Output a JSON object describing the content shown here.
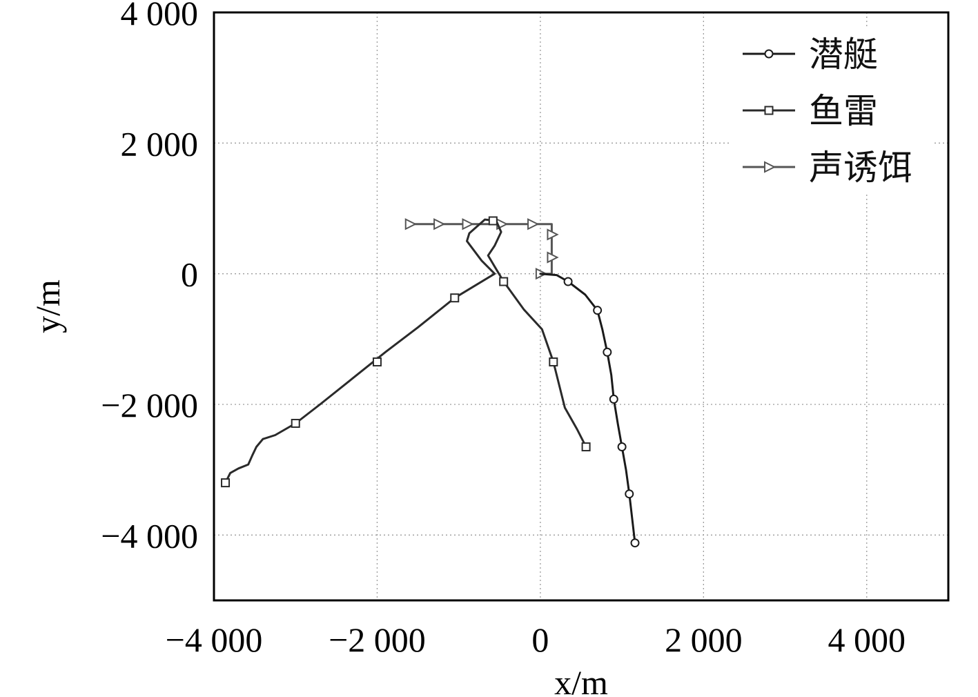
{
  "chart_data": {
    "type": "line",
    "title": "",
    "xlabel": "x/m",
    "ylabel": "y/m",
    "xlim": [
      -4000,
      5000
    ],
    "ylim": [
      -5000,
      4000
    ],
    "x_ticks": [
      -4000,
      -2000,
      0,
      2000,
      4000
    ],
    "y_ticks": [
      -4000,
      -2000,
      0,
      2000,
      4000
    ],
    "x_tick_labels": [
      "−4 000",
      "−2 000",
      "0",
      "2 000",
      "4 000"
    ],
    "y_tick_labels": [
      "−4 000",
      "−2 000",
      "0",
      "2 000",
      "4 000"
    ],
    "grid": true,
    "legend_position": "top-right",
    "series": [
      {
        "name": "潜艇",
        "marker": "circle",
        "color": "#1a1a1a",
        "points": [
          [
            0,
            0
          ],
          [
            200,
            -20
          ],
          [
            340,
            -120
          ],
          [
            550,
            -320
          ],
          [
            700,
            -560
          ],
          [
            760,
            -850
          ],
          [
            820,
            -1200
          ],
          [
            870,
            -1550
          ],
          [
            900,
            -1920
          ],
          [
            950,
            -2300
          ],
          [
            1000,
            -2650
          ],
          [
            1050,
            -3000
          ],
          [
            1090,
            -3370
          ],
          [
            1160,
            -4120
          ]
        ],
        "marker_points": [
          [
            340,
            -120
          ],
          [
            700,
            -560
          ],
          [
            820,
            -1200
          ],
          [
            900,
            -1920
          ],
          [
            1000,
            -2650
          ],
          [
            1090,
            -3370
          ],
          [
            1160,
            -4120
          ]
        ]
      },
      {
        "name": "鱼雷",
        "marker": "square",
        "color": "#2a2a2a",
        "points": [
          [
            560,
            -2650
          ],
          [
            450,
            -2380
          ],
          [
            300,
            -2050
          ],
          [
            160,
            -1350
          ],
          [
            20,
            -850
          ],
          [
            -200,
            -550
          ],
          [
            -450,
            -120
          ],
          [
            -560,
            110
          ],
          [
            -640,
            280
          ],
          [
            -560,
            430
          ],
          [
            -480,
            640
          ],
          [
            -540,
            810
          ],
          [
            -680,
            830
          ],
          [
            -870,
            620
          ],
          [
            -900,
            500
          ],
          [
            -720,
            200
          ],
          [
            -560,
            0
          ],
          [
            -1050,
            -370
          ],
          [
            -1500,
            -820
          ],
          [
            -1900,
            -1200
          ],
          [
            -2350,
            -1650
          ],
          [
            -2700,
            -2000
          ],
          [
            -3000,
            -2290
          ],
          [
            -3250,
            -2470
          ],
          [
            -3400,
            -2530
          ],
          [
            -3480,
            -2650
          ],
          [
            -3530,
            -2780
          ],
          [
            -3580,
            -2920
          ],
          [
            -3700,
            -2980
          ],
          [
            -3800,
            -3050
          ],
          [
            -3860,
            -3200
          ]
        ],
        "marker_points": [
          [
            560,
            -2650
          ],
          [
            160,
            -1350
          ],
          [
            -450,
            -120
          ],
          [
            -580,
            810
          ],
          [
            -1050,
            -370
          ],
          [
            -2000,
            -1350
          ],
          [
            -3000,
            -2290
          ],
          [
            -3860,
            -3200
          ]
        ]
      },
      {
        "name": "声诱饵",
        "marker": "triangle-right",
        "color": "#555555",
        "points": [
          [
            0,
            0
          ],
          [
            140,
            0
          ],
          [
            140,
            250
          ],
          [
            140,
            600
          ],
          [
            140,
            760
          ],
          [
            -100,
            760
          ],
          [
            -480,
            760
          ],
          [
            -900,
            760
          ],
          [
            -1250,
            760
          ],
          [
            -1600,
            760
          ]
        ],
        "marker_points": [
          [
            0,
            0
          ],
          [
            140,
            250
          ],
          [
            140,
            600
          ],
          [
            -100,
            760
          ],
          [
            -480,
            760
          ],
          [
            -900,
            760
          ],
          [
            -1250,
            760
          ],
          [
            -1600,
            760
          ]
        ]
      }
    ]
  }
}
